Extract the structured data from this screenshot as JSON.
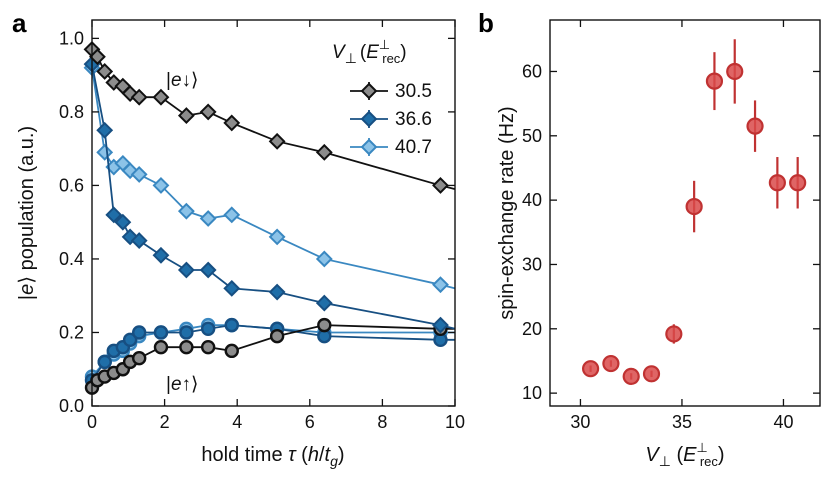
{
  "chart_data": [
    {
      "panel_label": "a",
      "type": "line",
      "xlabel_parts": [
        "hold time ",
        "τ",
        " (",
        "h",
        "/",
        "t",
        "g",
        ")"
      ],
      "ylabel_parts": [
        "|",
        "e",
        "⟩ population (a.u.)"
      ],
      "xlim": [
        0,
        10
      ],
      "ylim": [
        0,
        1.05
      ],
      "xticks": [
        0,
        2,
        4,
        6,
        8,
        10
      ],
      "yticks": [
        0.0,
        0.2,
        0.4,
        0.6,
        0.8,
        1.0
      ],
      "xtick_labels": [
        "0",
        "2",
        "4",
        "6",
        "8",
        "10"
      ],
      "ytick_labels": [
        "0.0",
        "0.2",
        "0.4",
        "0.6",
        "0.8",
        "1.0"
      ],
      "legend": {
        "title_parts": [
          "V",
          "⊥",
          "(",
          "E",
          "⊥",
          "rec",
          ")"
        ],
        "placement": "top-right",
        "entries": [
          "30.5",
          "36.6",
          "40.7"
        ]
      },
      "annotations": {
        "down_parts": [
          "|",
          "e",
          "↓⟩"
        ],
        "up_parts": [
          "|",
          "e",
          "↑⟩"
        ]
      },
      "colors": {
        "s1": "#111111",
        "s2": "#174f82",
        "s3": "#3a88c1",
        "s1_fill": "#8c8c8c",
        "s2_fill": "#1f6ea8",
        "s3_fill": "#8cc3e8"
      },
      "series": [
        {
          "name": "30.5",
          "state": "down",
          "marker": "diamond",
          "x": [
            0,
            0.15,
            0.35,
            0.6,
            0.85,
            1.05,
            1.3,
            1.9,
            2.6,
            3.2,
            3.85,
            5.1,
            6.4,
            9.6,
            10
          ],
          "y": [
            0.97,
            0.95,
            0.91,
            0.88,
            0.87,
            0.85,
            0.84,
            0.84,
            0.79,
            0.8,
            0.77,
            0.72,
            0.69,
            0.6,
            0.59
          ]
        },
        {
          "name": "36.6",
          "state": "down",
          "marker": "diamond",
          "x": [
            0,
            0.35,
            0.6,
            0.85,
            1.05,
            1.3,
            1.9,
            2.6,
            3.2,
            3.85,
            5.1,
            6.4,
            9.6,
            10
          ],
          "y": [
            0.93,
            0.75,
            0.52,
            0.5,
            0.46,
            0.45,
            0.41,
            0.37,
            0.37,
            0.32,
            0.31,
            0.28,
            0.22,
            0.21
          ]
        },
        {
          "name": "40.7",
          "state": "down",
          "marker": "diamond",
          "x": [
            0,
            0.35,
            0.6,
            0.85,
            1.05,
            1.3,
            1.9,
            2.6,
            3.2,
            3.85,
            5.1,
            6.4,
            9.6,
            10
          ],
          "y": [
            0.92,
            0.69,
            0.65,
            0.66,
            0.64,
            0.63,
            0.6,
            0.53,
            0.51,
            0.52,
            0.46,
            0.4,
            0.33,
            0.32
          ]
        },
        {
          "name": "30.5",
          "state": "up",
          "marker": "circle",
          "x": [
            0,
            0.15,
            0.35,
            0.6,
            0.85,
            1.05,
            1.3,
            1.9,
            2.6,
            3.2,
            3.85,
            5.1,
            6.4,
            9.6,
            10
          ],
          "y": [
            0.05,
            0.07,
            0.08,
            0.09,
            0.1,
            0.12,
            0.13,
            0.16,
            0.16,
            0.16,
            0.15,
            0.19,
            0.22,
            0.21,
            0.21
          ]
        },
        {
          "name": "36.6",
          "state": "up",
          "marker": "circle",
          "x": [
            0,
            0.35,
            0.6,
            0.85,
            1.05,
            1.3,
            1.9,
            2.6,
            3.2,
            3.85,
            5.1,
            6.4,
            9.6,
            10
          ],
          "y": [
            0.07,
            0.12,
            0.15,
            0.16,
            0.18,
            0.2,
            0.2,
            0.2,
            0.21,
            0.22,
            0.21,
            0.19,
            0.18,
            0.18
          ]
        },
        {
          "name": "40.7",
          "state": "up",
          "marker": "circle",
          "x": [
            0,
            0.35,
            0.6,
            0.85,
            1.05,
            1.3,
            1.9,
            2.6,
            3.2,
            3.85,
            5.1,
            6.4,
            9.6,
            10
          ],
          "y": [
            0.08,
            0.12,
            0.14,
            0.15,
            0.17,
            0.19,
            0.2,
            0.21,
            0.22,
            0.22,
            0.21,
            0.2,
            0.2,
            0.2
          ]
        }
      ]
    },
    {
      "panel_label": "b",
      "type": "scatter",
      "ylabel": "spin-exchange rate (Hz)",
      "xlabel_parts": [
        "V",
        "⊥",
        " (",
        "E",
        "⊥",
        "rec",
        ")"
      ],
      "xlim": [
        28.5,
        41.8
      ],
      "ylim": [
        8,
        68
      ],
      "xticks": [
        30,
        35,
        40
      ],
      "yticks": [
        10,
        20,
        30,
        40,
        50,
        60
      ],
      "xtick_labels": [
        "30",
        "35",
        "40"
      ],
      "ytick_labels": [
        "10",
        "20",
        "30",
        "40",
        "50",
        "60"
      ],
      "colors": {
        "marker": "#d94a4a",
        "edge": "#c03232"
      },
      "points": {
        "x": [
          30.5,
          31.5,
          32.5,
          33.5,
          34.6,
          35.6,
          36.6,
          37.6,
          38.6,
          39.7,
          40.7
        ],
        "y": [
          13.8,
          14.6,
          12.6,
          13.0,
          19.2,
          39.0,
          58.5,
          60.0,
          51.5,
          42.7,
          42.7
        ],
        "yerr": [
          0.5,
          0.5,
          0.5,
          0.5,
          1.5,
          4.0,
          4.5,
          5.0,
          4.0,
          4.0,
          4.0
        ]
      }
    }
  ]
}
